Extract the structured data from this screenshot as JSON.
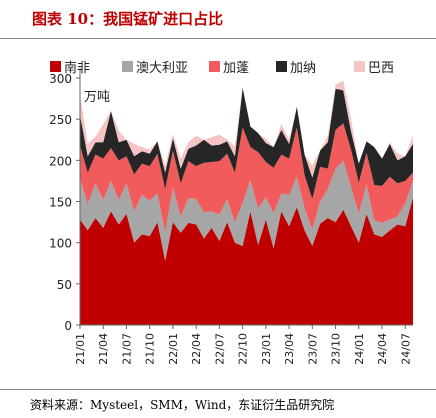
{
  "title": "图表 10：我国锰矿进口占比",
  "source": "资料来源：Mysteel，SMM，Wind，东证衍生品研究院",
  "colors": {
    "title": "#c00000",
    "南非": "#c00000",
    "澳大利亚": "#a6a6a6",
    "加蓬": "#f25b5b",
    "加纳": "#262626",
    "巴西": "#f7c4c4"
  },
  "chart_data": {
    "type": "area",
    "stacked": true,
    "ylabel": "万吨",
    "ylim": [
      0,
      300
    ],
    "yticks": [
      0,
      50,
      100,
      150,
      200,
      250,
      300
    ],
    "legend_position": "top",
    "x": [
      "21/01",
      "21/02",
      "21/03",
      "21/04",
      "21/05",
      "21/06",
      "21/07",
      "21/08",
      "21/09",
      "21/10",
      "21/11",
      "21/12",
      "22/01",
      "22/02",
      "22/03",
      "22/04",
      "22/05",
      "22/06",
      "22/07",
      "22/08",
      "22/09",
      "22/10",
      "22/11",
      "22/12",
      "23/01",
      "23/02",
      "23/03",
      "23/04",
      "23/05",
      "23/06",
      "23/07",
      "23/08",
      "23/09",
      "23/10",
      "23/11",
      "23/12",
      "24/01",
      "24/02",
      "24/03",
      "24/04",
      "24/05",
      "24/06",
      "24/07",
      "24/08"
    ],
    "xtick_labels": [
      "21/01",
      "21/04",
      "21/07",
      "21/10",
      "22/01",
      "22/04",
      "22/07",
      "22/10",
      "23/01",
      "23/04",
      "23/07",
      "23/10",
      "24/01",
      "24/04",
      "24/07"
    ],
    "series": [
      {
        "name": "南非",
        "values": [
          128,
          115,
          130,
          118,
          138,
          122,
          135,
          100,
          110,
          108,
          125,
          78,
          125,
          112,
          124,
          122,
          105,
          118,
          102,
          125,
          100,
          96,
          138,
          97,
          128,
          93,
          138,
          120,
          143,
          115,
          96,
          123,
          130,
          125,
          140,
          120,
          100,
          135,
          110,
          107,
          115,
          122,
          120,
          155
        ]
      },
      {
        "name": "澳大利亚",
        "values": [
          50,
          32,
          42,
          34,
          37,
          30,
          37,
          38,
          48,
          43,
          35,
          35,
          42,
          20,
          30,
          31,
          32,
          20,
          32,
          28,
          25,
          52,
          38,
          45,
          27,
          43,
          22,
          38,
          37,
          27,
          20,
          27,
          35,
          65,
          60,
          48,
          35,
          36,
          17,
          17,
          13,
          10,
          28,
          20
        ]
      },
      {
        "name": "加蓬",
        "values": [
          40,
          38,
          35,
          50,
          40,
          48,
          33,
          45,
          38,
          42,
          48,
          52,
          45,
          40,
          45,
          40,
          60,
          60,
          65,
          55,
          60,
          92,
          40,
          68,
          43,
          55,
          47,
          44,
          60,
          40,
          37,
          42,
          25,
          47,
          45,
          45,
          38,
          38,
          43,
          45,
          52,
          40,
          27,
          10
        ]
      },
      {
        "name": "加纳",
        "values": [
          37,
          20,
          15,
          20,
          45,
          22,
          20,
          22,
          15,
          15,
          15,
          20,
          15,
          18,
          15,
          25,
          28,
          20,
          20,
          15,
          20,
          48,
          25,
          23,
          23,
          25,
          30,
          18,
          25,
          25,
          26,
          20,
          32,
          50,
          40,
          22,
          23,
          14,
          46,
          33,
          40,
          28,
          30,
          35
        ]
      },
      {
        "name": "巴西",
        "values": [
          25,
          15,
          7,
          22,
          0,
          14,
          0,
          15,
          5,
          5,
          0,
          8,
          5,
          12,
          8,
          12,
          0,
          10,
          12,
          2,
          12,
          0,
          0,
          0,
          5,
          0,
          7,
          5,
          0,
          0,
          15,
          0,
          8,
          5,
          12,
          15,
          0,
          0,
          0,
          0,
          2,
          8,
          0,
          10
        ]
      }
    ]
  }
}
